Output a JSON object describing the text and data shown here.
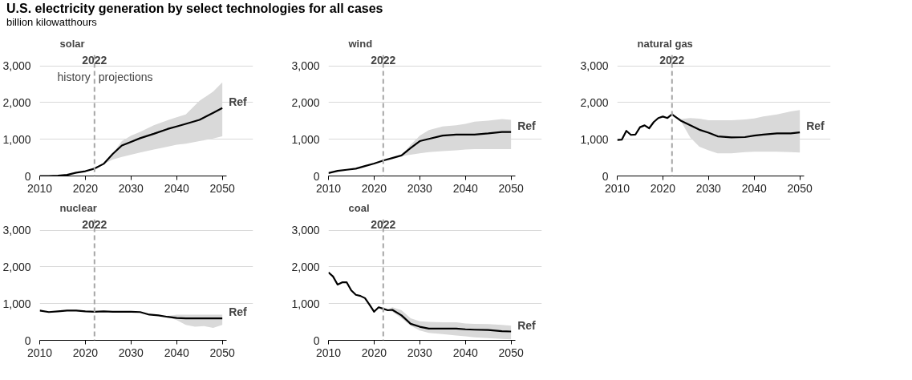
{
  "chart_data": [
    {
      "type": "line",
      "title": "U.S. electricity generation by select technologies for all cases",
      "subtitle": "billion kilowatthours",
      "ylabel": "solar",
      "annotations": [
        "history",
        "projections"
      ],
      "xlim": [
        2010,
        2051
      ],
      "ylim": [
        0,
        3000
      ],
      "xticks": [
        2010,
        2020,
        2030,
        2040,
        2050
      ],
      "yticks": [
        0,
        {
          "value": 1000,
          "label": "1,000"
        },
        {
          "value": 2000,
          "label": "2,000"
        },
        {
          "value": 3000,
          "label": "3,000"
        }
      ],
      "grid": "y",
      "ref_lines": [
        {
          "axis": "x",
          "value": 2022,
          "label": "2022",
          "color": "#a6a6a6",
          "line_style": "dashed"
        }
      ],
      "series": [
        {
          "name": "Ref",
          "color": "#000000",
          "x": [
            2010,
            2012,
            2014,
            2016,
            2018,
            2020,
            2022,
            2024,
            2026,
            2028,
            2030,
            2032,
            2035,
            2038,
            2040,
            2042,
            2045,
            2048,
            2050
          ],
          "values": [
            0,
            0,
            10,
            30,
            90,
            130,
            200,
            330,
            600,
            830,
            930,
            1030,
            1150,
            1280,
            1350,
            1420,
            1530,
            1720,
            1850
          ],
          "lower": [
            null,
            null,
            null,
            null,
            null,
            null,
            200,
            330,
            450,
            520,
            580,
            640,
            720,
            800,
            850,
            880,
            950,
            1020,
            1080
          ],
          "upper": [
            null,
            null,
            null,
            null,
            null,
            null,
            200,
            330,
            620,
            950,
            1100,
            1200,
            1380,
            1520,
            1600,
            1680,
            2050,
            2300,
            2550
          ]
        }
      ]
    },
    {
      "type": "line",
      "ylabel": "wind",
      "xlim": [
        2010,
        2051
      ],
      "ylim": [
        0,
        3000
      ],
      "xticks": [
        2010,
        2020,
        2030,
        2040,
        2050
      ],
      "yticks": [
        0,
        {
          "value": 1000,
          "label": "1,000"
        },
        {
          "value": 2000,
          "label": "2,000"
        },
        {
          "value": 3000,
          "label": "3,000"
        }
      ],
      "grid": "y",
      "ref_lines": [
        {
          "axis": "x",
          "value": 2022,
          "label": "2022",
          "color": "#a6a6a6",
          "line_style": "dashed"
        }
      ],
      "series": [
        {
          "name": "Ref",
          "color": "#000000",
          "x": [
            2010,
            2012,
            2014,
            2016,
            2018,
            2020,
            2022,
            2024,
            2026,
            2028,
            2030,
            2032,
            2035,
            2038,
            2040,
            2042,
            2045,
            2048,
            2050
          ],
          "values": [
            80,
            140,
            170,
            200,
            270,
            340,
            420,
            490,
            560,
            760,
            950,
            1010,
            1100,
            1130,
            1130,
            1130,
            1160,
            1200,
            1200
          ],
          "lower": [
            null,
            null,
            null,
            null,
            null,
            null,
            420,
            490,
            540,
            580,
            620,
            650,
            680,
            700,
            720,
            730,
            730,
            730,
            730
          ],
          "upper": [
            null,
            null,
            null,
            null,
            null,
            null,
            420,
            490,
            560,
            850,
            1100,
            1250,
            1350,
            1380,
            1420,
            1480,
            1510,
            1550,
            1530
          ]
        }
      ]
    },
    {
      "type": "line",
      "ylabel": "natural gas",
      "xlim": [
        2010,
        2051
      ],
      "ylim": [
        0,
        3000
      ],
      "xticks": [
        2010,
        2020,
        2030,
        2040,
        2050
      ],
      "yticks": [
        0,
        {
          "value": 1000,
          "label": "1,000"
        },
        {
          "value": 2000,
          "label": "2,000"
        },
        {
          "value": 3000,
          "label": "3,000"
        }
      ],
      "grid": "y",
      "ref_lines": [
        {
          "axis": "x",
          "value": 2022,
          "label": "2022",
          "color": "#a6a6a6",
          "line_style": "dashed"
        }
      ],
      "series": [
        {
          "name": "Ref",
          "color": "#000000",
          "x": [
            2010,
            2011,
            2012,
            2013,
            2014,
            2015,
            2016,
            2017,
            2018,
            2019,
            2020,
            2021,
            2022,
            2024,
            2026,
            2028,
            2030,
            2032,
            2035,
            2038,
            2040,
            2042,
            2045,
            2048,
            2050
          ],
          "values": [
            980,
            990,
            1230,
            1120,
            1130,
            1330,
            1380,
            1300,
            1470,
            1580,
            1620,
            1580,
            1680,
            1500,
            1380,
            1260,
            1180,
            1080,
            1050,
            1060,
            1100,
            1130,
            1160,
            1160,
            1190
          ],
          "lower": [
            null,
            null,
            null,
            null,
            null,
            null,
            null,
            null,
            null,
            null,
            null,
            null,
            1680,
            1480,
            1050,
            800,
            700,
            620,
            620,
            650,
            660,
            660,
            660,
            650,
            640
          ],
          "upper": [
            null,
            null,
            null,
            null,
            null,
            null,
            null,
            null,
            null,
            null,
            null,
            null,
            1680,
            1550,
            1580,
            1560,
            1520,
            1520,
            1520,
            1540,
            1570,
            1620,
            1680,
            1760,
            1800
          ]
        }
      ]
    },
    {
      "type": "line",
      "ylabel": "nuclear",
      "xlim": [
        2010,
        2051
      ],
      "ylim": [
        0,
        3000
      ],
      "xticks": [
        2010,
        2020,
        2030,
        2040,
        2050
      ],
      "yticks": [
        0,
        {
          "value": 1000,
          "label": "1,000"
        },
        {
          "value": 2000,
          "label": "2,000"
        },
        {
          "value": 3000,
          "label": "3,000"
        }
      ],
      "grid": "y",
      "ref_lines": [
        {
          "axis": "x",
          "value": 2022,
          "label": "2022",
          "color": "#a6a6a6",
          "line_style": "dashed"
        }
      ],
      "series": [
        {
          "name": "Ref",
          "color": "#000000",
          "x": [
            2010,
            2012,
            2014,
            2016,
            2018,
            2020,
            2022,
            2024,
            2026,
            2028,
            2030,
            2032,
            2034,
            2036,
            2038,
            2040,
            2042,
            2044,
            2046,
            2048,
            2050
          ],
          "values": [
            810,
            770,
            790,
            810,
            810,
            790,
            780,
            790,
            780,
            780,
            780,
            770,
            700,
            680,
            640,
            610,
            600,
            600,
            600,
            600,
            600
          ],
          "lower": [
            null,
            null,
            null,
            null,
            null,
            null,
            780,
            790,
            780,
            780,
            780,
            770,
            700,
            680,
            640,
            550,
            420,
            370,
            390,
            340,
            420
          ],
          "upper": [
            null,
            null,
            null,
            null,
            null,
            null,
            780,
            790,
            780,
            780,
            780,
            770,
            700,
            690,
            660,
            700,
            700,
            700,
            700,
            700,
            700
          ]
        }
      ]
    },
    {
      "type": "line",
      "ylabel": "coal",
      "xlim": [
        2010,
        2051
      ],
      "ylim": [
        0,
        3000
      ],
      "xticks": [
        2010,
        2020,
        2030,
        2040,
        2050
      ],
      "yticks": [
        0,
        {
          "value": 1000,
          "label": "1,000"
        },
        {
          "value": 2000,
          "label": "2,000"
        },
        {
          "value": 3000,
          "label": "3,000"
        }
      ],
      "grid": "y",
      "ref_lines": [
        {
          "axis": "x",
          "value": 2022,
          "label": "2022",
          "color": "#a6a6a6",
          "line_style": "dashed"
        }
      ],
      "series": [
        {
          "name": "Ref",
          "color": "#000000",
          "x": [
            2010,
            2011,
            2012,
            2013,
            2014,
            2015,
            2016,
            2017,
            2018,
            2019,
            2020,
            2021,
            2022,
            2023,
            2024,
            2026,
            2028,
            2030,
            2032,
            2035,
            2038,
            2040,
            2042,
            2045,
            2048,
            2050
          ],
          "values": [
            1850,
            1740,
            1520,
            1580,
            1580,
            1360,
            1240,
            1210,
            1150,
            970,
            780,
            900,
            860,
            820,
            830,
            680,
            450,
            370,
            320,
            320,
            320,
            300,
            290,
            280,
            250,
            240
          ],
          "lower": [
            null,
            null,
            null,
            null,
            null,
            null,
            null,
            null,
            null,
            null,
            null,
            null,
            860,
            800,
            780,
            600,
            400,
            270,
            200,
            170,
            130,
            110,
            80,
            60,
            40,
            30
          ],
          "upper": [
            null,
            null,
            null,
            null,
            null,
            null,
            null,
            null,
            null,
            null,
            null,
            null,
            860,
            840,
            900,
            820,
            600,
            520,
            500,
            490,
            490,
            460,
            450,
            440,
            420,
            400
          ]
        }
      ]
    }
  ]
}
